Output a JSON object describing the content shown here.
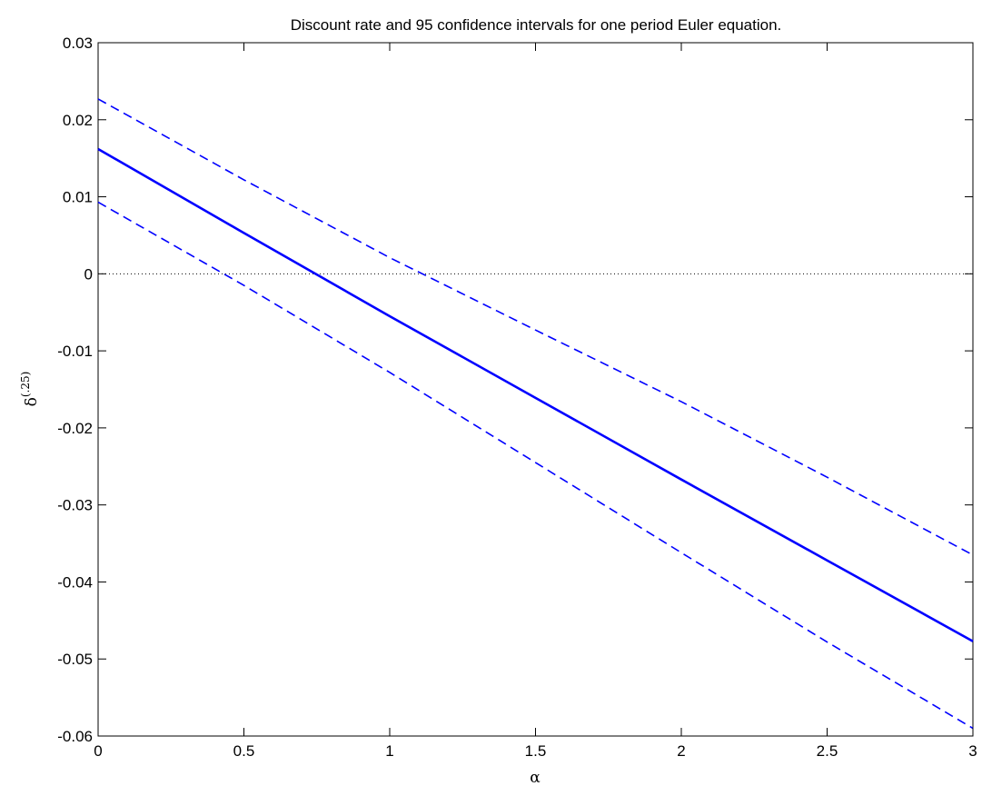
{
  "chart_data": {
    "type": "line",
    "title": "Discount rate and 95 confidence intervals for one period Euler equation.",
    "xlabel": "α",
    "ylabel_base": "δ",
    "ylabel_sup": "(.25)",
    "xlim": [
      0,
      3
    ],
    "ylim": [
      -0.06,
      0.03
    ],
    "xticks": [
      0,
      0.5,
      1,
      1.5,
      2,
      2.5,
      3
    ],
    "xtick_labels": [
      "0",
      "0.5",
      "1",
      "1.5",
      "2",
      "2.5",
      "3"
    ],
    "yticks": [
      -0.06,
      -0.05,
      -0.04,
      -0.03,
      -0.02,
      -0.01,
      0,
      0.01,
      0.02,
      0.03
    ],
    "ytick_labels": [
      "-0.06",
      "-0.05",
      "-0.04",
      "-0.03",
      "-0.02",
      "-0.01",
      "0",
      "0.01",
      "0.02",
      "0.03"
    ],
    "grid": false,
    "reference_line": {
      "y": 0,
      "style": "dotted",
      "color": "#000000"
    },
    "x": [
      0,
      0.5,
      1,
      1.5,
      2,
      2.5,
      3
    ],
    "series": [
      {
        "style": "solid",
        "color": "#0000ff",
        "values": [
          0.0162,
          0.0053,
          -0.0055,
          -0.0161,
          -0.0267,
          -0.0372,
          -0.0477
        ]
      },
      {
        "style": "dashed",
        "color": "#0000ff",
        "values": [
          0.0227,
          0.0122,
          0.0021,
          -0.0073,
          -0.0166,
          -0.0264,
          -0.0365
        ]
      },
      {
        "style": "dashed",
        "color": "#0000ff",
        "values": [
          0.0093,
          -0.0015,
          -0.0128,
          -0.0245,
          -0.0362,
          -0.0478,
          -0.059
        ]
      }
    ]
  }
}
